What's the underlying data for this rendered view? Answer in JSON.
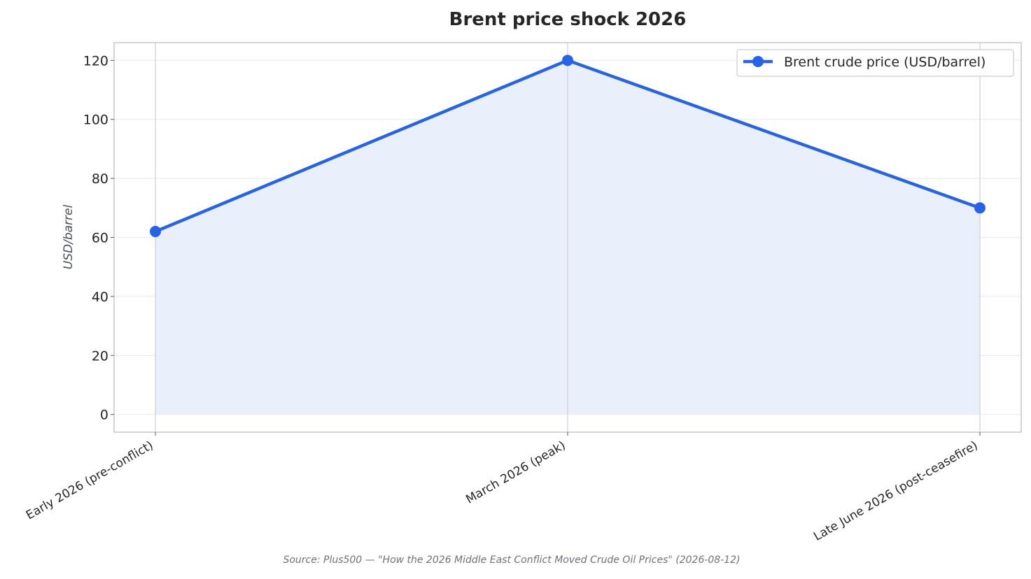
{
  "chart_data": {
    "type": "line",
    "title": "Brent price shock 2026",
    "xlabel": "",
    "ylabel": "USD/barrel",
    "categories": [
      "Early 2026 (pre-conflict)",
      "March 2026 (peak)",
      "Late June 2026 (post-ceasefire)"
    ],
    "series": [
      {
        "name": "Brent crude price (USD/barrel)",
        "values": [
          62,
          120,
          70
        ]
      }
    ],
    "ylim": [
      -6,
      126
    ],
    "yticks": [
      0,
      20,
      40,
      60,
      80,
      100,
      120
    ],
    "area_fill": true,
    "grid": true,
    "legend_position": "top-right",
    "colors": {
      "line": "#2563eb",
      "fill": "#eaf0fb",
      "grid": "#ececec",
      "frame": "#c8c8c8"
    }
  },
  "source_note": "Source: Plus500 — \"How the 2026 Middle East Conflict Moved Crude Oil Prices\" (2026-08-12)"
}
